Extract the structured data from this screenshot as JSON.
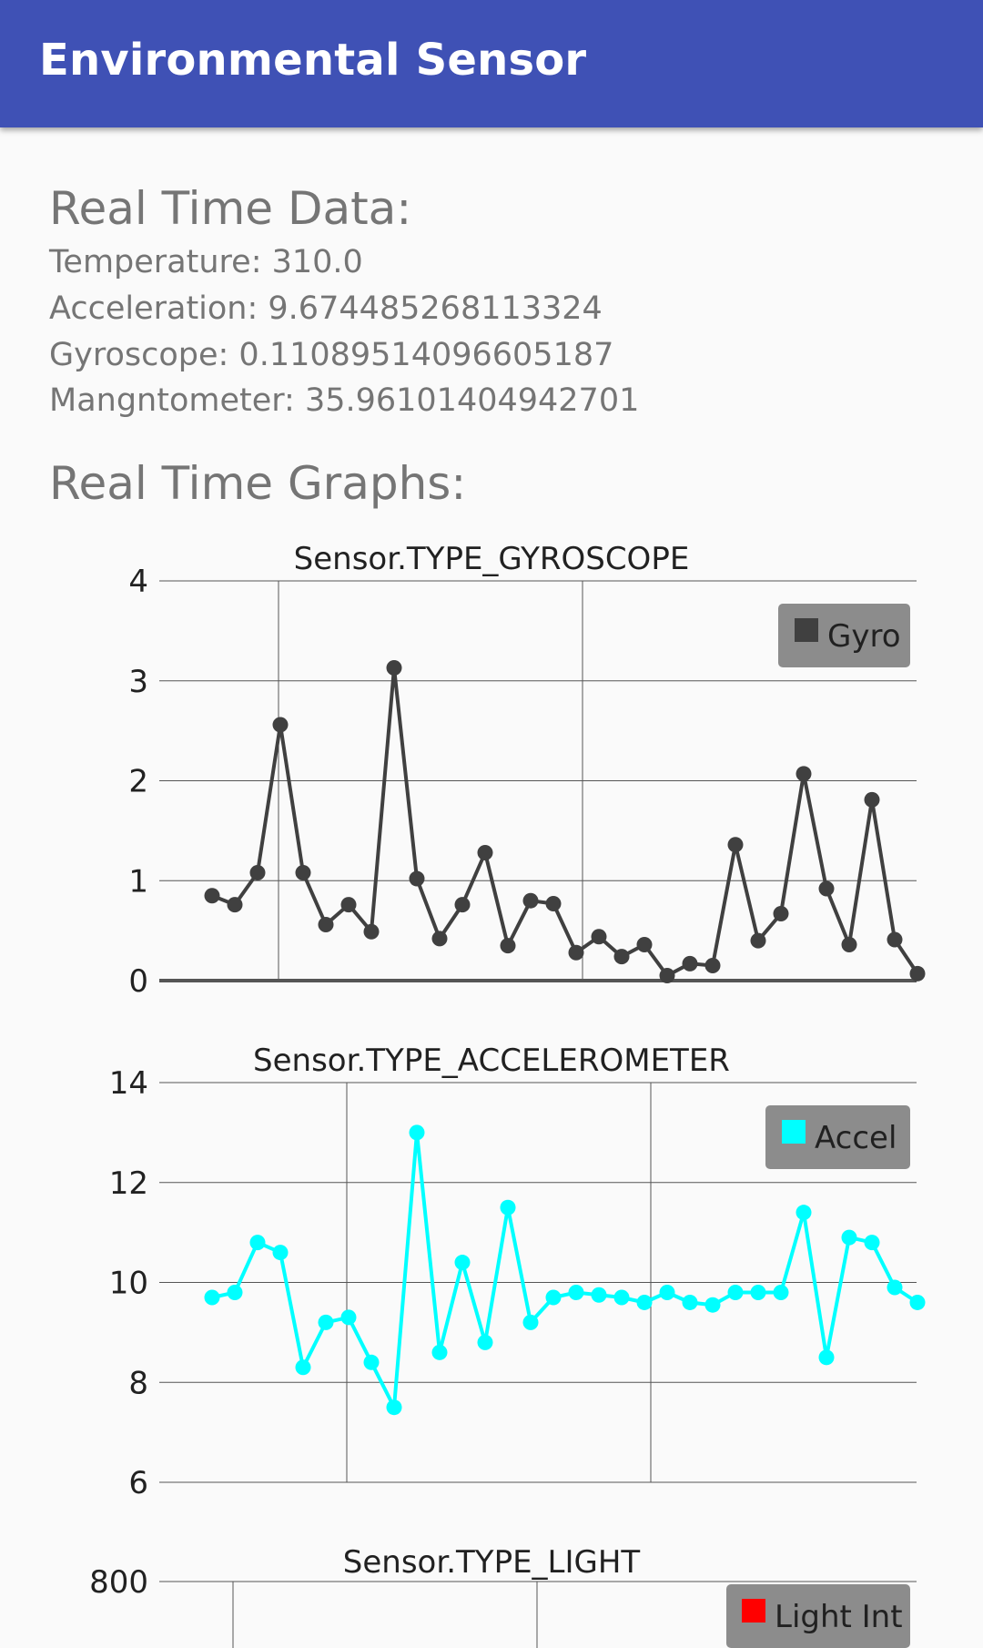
{
  "app_bar": {
    "title": "Environmental Sensor",
    "color": "#3f51b5"
  },
  "realtime": {
    "title": "Real Time Data:",
    "temperature": "Temperature: 310.0",
    "acceleration": "Acceleration: 9.674485268113324",
    "gyroscope": "Gyroscope: 0.11089514096605187",
    "magnetometer": "Mangntometer: 35.96101404942701"
  },
  "graphs": {
    "title": "Real Time Graphs:"
  },
  "chart_data": [
    {
      "type": "line",
      "title": "Sensor.TYPE_GYROSCOPE",
      "ylim": [
        0,
        4
      ],
      "y_ticks": [
        "0",
        "1",
        "2",
        "3",
        "4"
      ],
      "grid": true,
      "legend": "top-right",
      "series": [
        {
          "name": "Gyro",
          "color": "#404040",
          "values": [
            0.85,
            0.76,
            1.08,
            2.56,
            1.08,
            0.56,
            0.76,
            0.49,
            3.13,
            1.02,
            0.42,
            0.76,
            1.28,
            0.35,
            0.8,
            0.77,
            0.28,
            0.44,
            0.24,
            0.36,
            0.05,
            0.17,
            0.15,
            1.36,
            0.4,
            0.67,
            2.07,
            0.92,
            0.36,
            1.81,
            0.41,
            0.07
          ]
        }
      ]
    },
    {
      "type": "line",
      "title": "Sensor.TYPE_ACCELEROMETER",
      "ylim": [
        6,
        14
      ],
      "y_ticks": [
        "6",
        "8",
        "10",
        "12",
        "14"
      ],
      "grid": true,
      "legend": "top-right",
      "series": [
        {
          "name": "Accel",
          "color": "#00ffff",
          "values": [
            9.7,
            9.8,
            10.8,
            10.6,
            8.3,
            9.2,
            9.3,
            8.4,
            7.5,
            13.0,
            8.6,
            10.4,
            8.8,
            11.5,
            9.2,
            9.7,
            9.8,
            9.75,
            9.7,
            9.6,
            9.8,
            9.6,
            9.55,
            9.8,
            9.8,
            9.8,
            11.4,
            8.5,
            10.9,
            10.8,
            9.9,
            9.6
          ]
        }
      ]
    },
    {
      "type": "line",
      "title": "Sensor.TYPE_LIGHT",
      "y_ticks": [
        "800"
      ],
      "grid": true,
      "legend": "top-right",
      "series": [
        {
          "name": "Light Int",
          "color": "#ff0000",
          "values": []
        }
      ]
    }
  ]
}
